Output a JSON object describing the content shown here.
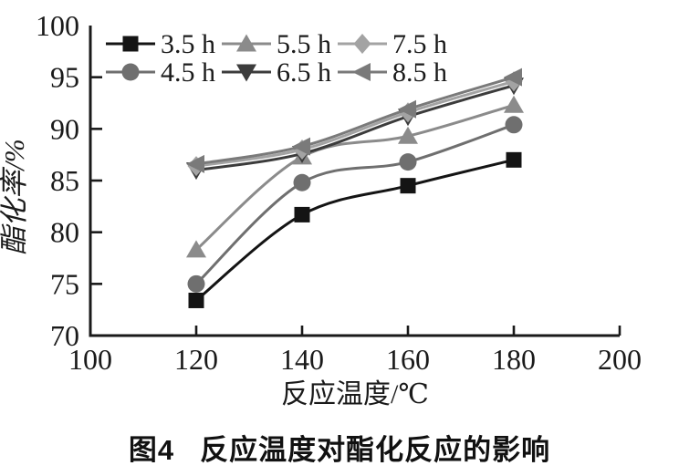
{
  "figure": {
    "caption_prefix": "图4",
    "caption_text": "反应温度对酯化反应的影响"
  },
  "chart_data": {
    "type": "line",
    "title": "",
    "xlabel": "反应温度/℃",
    "ylabel": "酯化率/%",
    "xlim": [
      100,
      200
    ],
    "ylim": [
      70,
      100
    ],
    "xticks": [
      100,
      120,
      140,
      160,
      180,
      200
    ],
    "yticks": [
      70,
      75,
      80,
      85,
      90,
      95,
      100
    ],
    "grid": false,
    "legend_position": "top-left-inside",
    "legend_layout": "3-columns-2-rows-column-major",
    "axis_color": "#1a1a1a",
    "x": [
      120,
      140,
      160,
      180
    ],
    "series": [
      {
        "name": "3.5 h",
        "marker": "square",
        "color": "#141414",
        "values": [
          73.4,
          81.7,
          84.5,
          87.0
        ]
      },
      {
        "name": "4.5 h",
        "marker": "circle",
        "color": "#6f6f6f",
        "values": [
          75.0,
          84.8,
          86.8,
          90.4
        ]
      },
      {
        "name": "5.5 h",
        "marker": "triangle-up",
        "color": "#8b8b8b",
        "values": [
          78.3,
          87.3,
          89.3,
          92.3
        ]
      },
      {
        "name": "6.5 h",
        "marker": "triangle-down",
        "color": "#3c3c3c",
        "values": [
          86.0,
          87.6,
          91.2,
          94.2
        ]
      },
      {
        "name": "7.5 h",
        "marker": "diamond",
        "color": "#a3a3a3",
        "values": [
          86.4,
          88.0,
          91.6,
          94.6
        ]
      },
      {
        "name": "8.5 h",
        "marker": "triangle-left",
        "color": "#7a7a7a",
        "values": [
          86.6,
          88.3,
          91.9,
          95.0
        ]
      }
    ]
  }
}
